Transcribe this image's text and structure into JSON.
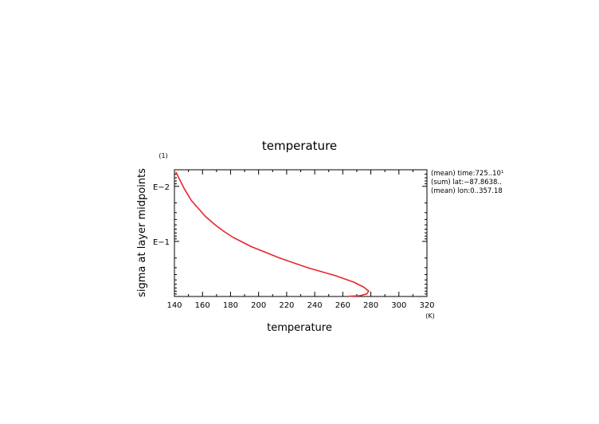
{
  "chart_data": {
    "type": "line",
    "title": "temperature",
    "xlabel": "temperature",
    "ylabel": "sigma at layer midpoints",
    "x_unit": "(K)",
    "y_unit": "(1)",
    "xlim": [
      140,
      320
    ],
    "ylim": [
      1,
      0.005
    ],
    "y_scale": "log",
    "x_ticks": [
      140,
      160,
      180,
      200,
      220,
      240,
      260,
      280,
      300,
      320
    ],
    "x_tick_labels": [
      "140",
      "160",
      "180",
      "200",
      "220",
      "240",
      "260",
      "280",
      "300",
      "320"
    ],
    "y_tick_labels": [
      {
        "value": 0.01,
        "label": "E−2"
      },
      {
        "value": 0.1,
        "label": "E−1"
      }
    ],
    "annotations": [
      "(mean) time:725..10¹",
      "(sum) lat:−87.8638..",
      "(mean) lon:0..357.18"
    ],
    "series": [
      {
        "color": "#e8252a",
        "points": [
          [
            264,
            0.995
          ],
          [
            272,
            0.97
          ],
          [
            277,
            0.9
          ],
          [
            278.5,
            0.8
          ],
          [
            275,
            0.68
          ],
          [
            268,
            0.55
          ],
          [
            255,
            0.42
          ],
          [
            235,
            0.3
          ],
          [
            215,
            0.2
          ],
          [
            195,
            0.125
          ],
          [
            182,
            0.085
          ],
          [
            175,
            0.065
          ],
          [
            169,
            0.05
          ],
          [
            162,
            0.035
          ],
          [
            152,
            0.018
          ],
          [
            147,
            0.011
          ],
          [
            141,
            0.0055
          ]
        ]
      }
    ]
  }
}
